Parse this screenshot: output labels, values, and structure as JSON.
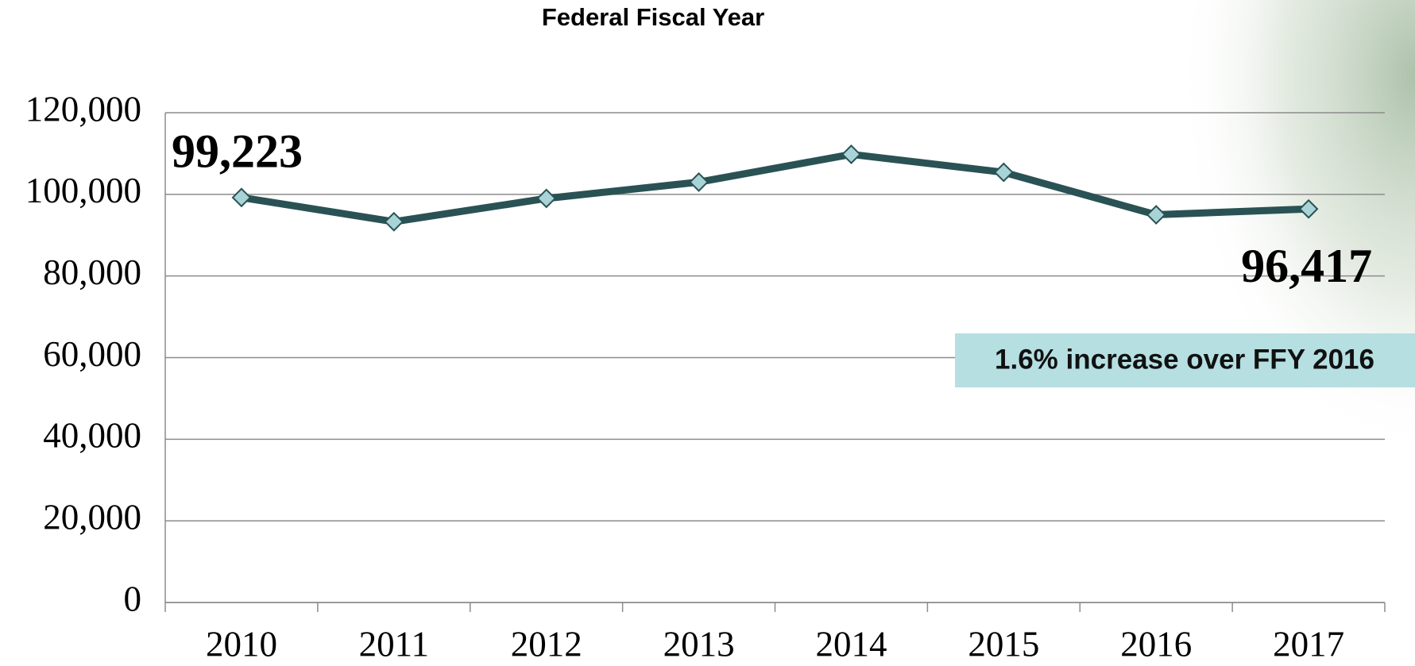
{
  "chart_data": {
    "type": "line",
    "title": "Federal Fiscal Year",
    "categories": [
      "2010",
      "2011",
      "2012",
      "2013",
      "2014",
      "2015",
      "2016",
      "2017"
    ],
    "values": [
      99223,
      93300,
      99000,
      103000,
      109800,
      105400,
      95000,
      96417
    ],
    "value_labels": [
      "99,223",
      null,
      null,
      null,
      null,
      null,
      null,
      "96,417"
    ],
    "color": "#2a5254",
    "marker_color": "#a8d4d8",
    "ylim": [
      0,
      120000
    ],
    "yticks": [
      0,
      {
        "value": 20000,
        "label": "20,000"
      },
      {
        "value": 40000,
        "label": "40,000"
      },
      {
        "value": 60000,
        "label": "60,000"
      },
      {
        "value": 80000,
        "label": "80,000"
      },
      {
        "value": 100000,
        "label": "100,000"
      },
      {
        "value": 120000,
        "label": "120,000"
      }
    ],
    "grid": true,
    "annotation": "1.6% increase over FFY 2016"
  }
}
